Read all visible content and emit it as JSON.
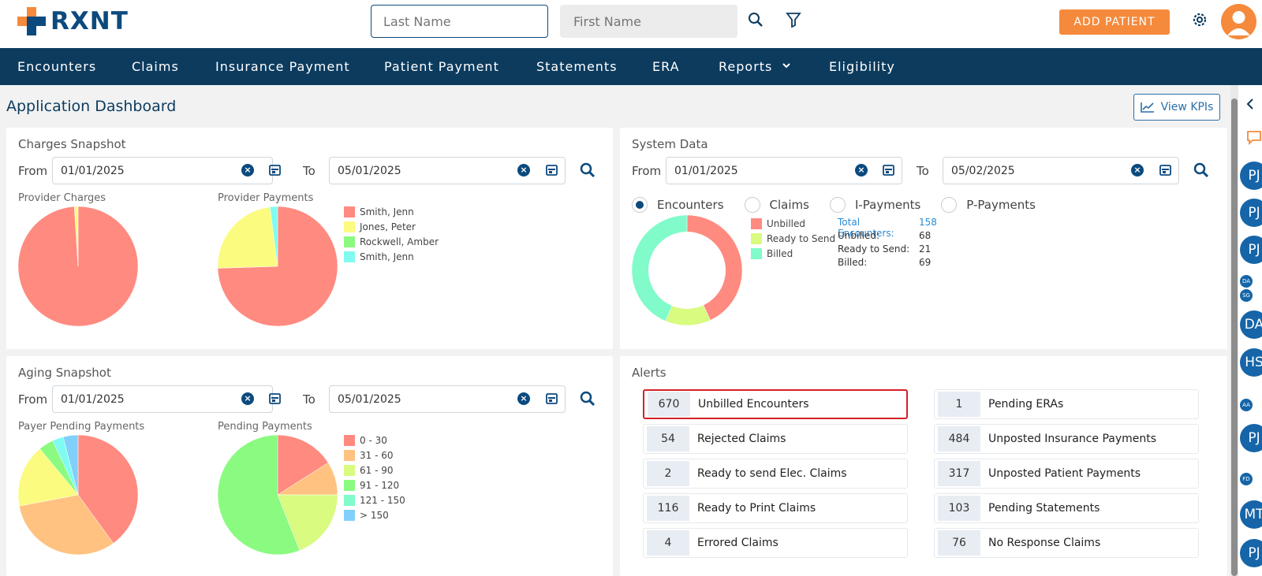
{
  "header": {
    "logo_text": "RXNT",
    "last_name_placeholder": "Last Name",
    "first_name_placeholder": "First Name",
    "add_patient_label": "ADD PATIENT"
  },
  "nav": [
    "Encounters",
    "Claims",
    "Insurance Payment",
    "Patient Payment",
    "Statements",
    "ERA",
    "Reports",
    "Eligibility"
  ],
  "page": {
    "title": "Application Dashboard",
    "view_kpis_label": "View KPIs"
  },
  "charges": {
    "title": "Charges Snapshot",
    "from_label": "From",
    "to_label": "To",
    "from_date": "01/01/2025",
    "to_date": "05/01/2025",
    "provider_charges_label": "Provider Charges",
    "provider_payments_label": "Provider Payments",
    "legend": [
      "Smith, Jenn",
      "Jones, Peter",
      "Rockwell, Amber",
      "Smith, Jenn"
    ]
  },
  "system": {
    "title": "System Data",
    "from_label": "From",
    "to_label": "To",
    "from_date": "01/01/2025",
    "to_date": "05/02/2025",
    "radios": [
      "Encounters",
      "Claims",
      "I-Payments",
      "P-Payments"
    ],
    "legend": [
      "Unbilled",
      "Ready to Send",
      "Billed"
    ],
    "stats": {
      "total_label": "Total Encounters:",
      "total_value": "158",
      "unbilled_label": "Unbilled:",
      "unbilled_value": "68",
      "ready_label": "Ready to Send:",
      "ready_value": "21",
      "billed_label": "Billed:",
      "billed_value": "69"
    }
  },
  "aging": {
    "title": "Aging Snapshot",
    "from_label": "From",
    "to_label": "To",
    "from_date": "01/01/2025",
    "to_date": "05/01/2025",
    "payer_pending_label": "Payer Pending Payments",
    "pending_label": "Pending Payments",
    "legend": [
      "0 - 30",
      "31 - 60",
      "61 - 90",
      "91 - 120",
      "121 - 150",
      "> 150"
    ]
  },
  "alerts": {
    "title": "Alerts",
    "left": [
      {
        "count": "670",
        "label": "Unbilled Encounters"
      },
      {
        "count": "54",
        "label": "Rejected Claims"
      },
      {
        "count": "2",
        "label": "Ready to send Elec. Claims"
      },
      {
        "count": "116",
        "label": "Ready to Print Claims"
      },
      {
        "count": "4",
        "label": "Errored Claims"
      }
    ],
    "right": [
      {
        "count": "1",
        "label": "Pending ERAs"
      },
      {
        "count": "484",
        "label": "Unposted Insurance Payments"
      },
      {
        "count": "317",
        "label": "Unposted Patient Payments"
      },
      {
        "count": "103",
        "label": "Pending Statements"
      },
      {
        "count": "76",
        "label": "No Response Claims"
      }
    ]
  },
  "rail": [
    "PJ",
    "PJ",
    "PJ",
    "DA",
    "HS",
    "PJ",
    "MT",
    "PJ",
    "DA",
    "SG",
    "AA",
    "FD"
  ],
  "chart_data": [
    {
      "type": "pie",
      "categories": [
        "Smith, Jenn",
        "Jones, Peter"
      ],
      "values": [
        99,
        1
      ],
      "title": "Provider Charges"
    },
    {
      "type": "pie",
      "categories": [
        "Smith, Jenn",
        "Jones, Peter",
        "Rockwell, Amber",
        "Smith, Jenn"
      ],
      "values": [
        73,
        23,
        0,
        2
      ],
      "title": "Provider Payments"
    },
    {
      "type": "pie",
      "categories": [
        "Unbilled",
        "Ready to Send",
        "Billed"
      ],
      "values": [
        68,
        21,
        69
      ],
      "title": "System Data"
    },
    {
      "type": "pie",
      "categories": [
        "0 - 30",
        "31 - 60",
        "61 - 90",
        "91 - 120",
        "121 - 150",
        "> 150"
      ],
      "values": [
        40,
        32,
        17,
        4,
        3,
        4
      ],
      "title": "Payer Pending Payments"
    },
    {
      "type": "pie",
      "categories": [
        "0 - 30",
        "31 - 60",
        "61 - 90",
        "91 - 120",
        "121 - 150",
        "> 150"
      ],
      "values": [
        16,
        9,
        19,
        56,
        0,
        0
      ],
      "title": "Pending Payments"
    }
  ],
  "colors": {
    "red": "#ff8a80",
    "yellow": "#fbfb80",
    "green": "#8afb80",
    "cyan": "#80fbf0",
    "orange": "#ffc280",
    "lime": "#d8fb80",
    "mint": "#80fbc9",
    "blue": "#80d0fb"
  }
}
